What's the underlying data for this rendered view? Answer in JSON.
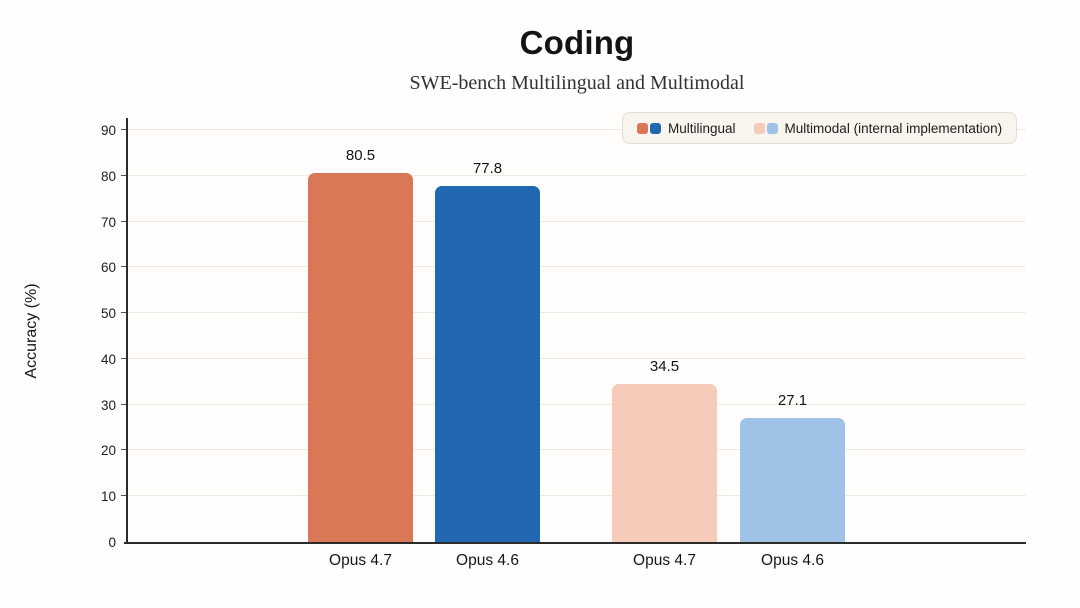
{
  "chart_data": {
    "type": "bar",
    "title": "Coding",
    "subtitle": "SWE-bench Multilingual and Multimodal",
    "xlabel": "",
    "ylabel": "Accuracy (%)",
    "ylim": [
      0,
      90
    ],
    "ytick_step": 10,
    "ytick_labels": [
      "0",
      "10",
      "20",
      "30",
      "40",
      "50",
      "60",
      "70",
      "80",
      "90"
    ],
    "grid": true,
    "legend_position": "top-right",
    "legend": [
      {
        "label": "Multilingual",
        "colors": [
          "#d97757",
          "#2268b0"
        ]
      },
      {
        "label": "Multimodal (internal implementation)",
        "colors": [
          "#f6cbb9",
          "#9fc3e7"
        ]
      }
    ],
    "bars": [
      {
        "category": "Opus 4.7",
        "series": "Multilingual",
        "value": 80.5,
        "value_label": "80.5",
        "color": "#d97757"
      },
      {
        "category": "Opus 4.6",
        "series": "Multilingual",
        "value": 77.8,
        "value_label": "77.8",
        "color": "#2268b0"
      },
      {
        "category": "Opus 4.7",
        "series": "Multimodal (internal implementation)",
        "value": 34.5,
        "value_label": "34.5",
        "color": "#f6cbb9"
      },
      {
        "category": "Opus 4.6",
        "series": "Multimodal (internal implementation)",
        "value": 27.1,
        "value_label": "27.1",
        "color": "#9fc3e7"
      }
    ]
  },
  "colors": {
    "background": "#fffefc",
    "axis": "#2b2b29",
    "gridline": "#edeadf",
    "legend_background": "#f8f5ee",
    "legend_border": "#e6dfd1",
    "text": "#141413"
  }
}
